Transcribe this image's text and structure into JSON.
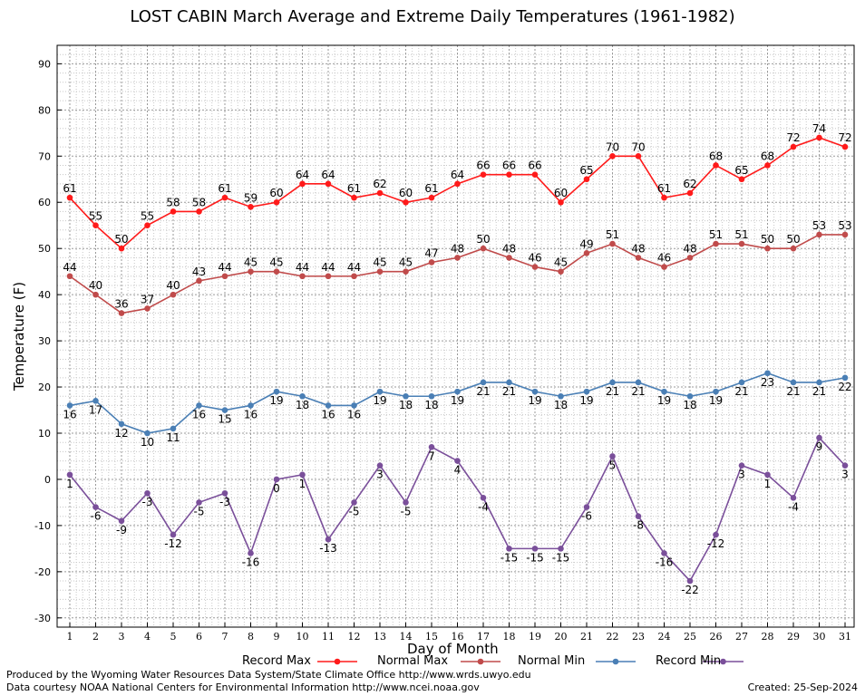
{
  "chart_data": {
    "type": "line",
    "title": "LOST CABIN March Average and Extreme Daily Temperatures (1961-1982)",
    "xlabel": "Day of Month",
    "ylabel": "Temperature (F)",
    "x": [
      1,
      2,
      3,
      4,
      5,
      6,
      7,
      8,
      9,
      10,
      11,
      12,
      13,
      14,
      15,
      16,
      17,
      18,
      19,
      20,
      21,
      22,
      23,
      24,
      25,
      26,
      27,
      28,
      29,
      30,
      31
    ],
    "ylim": [
      -32,
      94
    ],
    "yticks": [
      -30,
      -20,
      -10,
      0,
      10,
      20,
      30,
      40,
      50,
      60,
      70,
      80,
      90
    ],
    "grid": true,
    "legend_position": "bottom",
    "series": [
      {
        "name": "Record Max",
        "color": "#ff1a1a",
        "values": [
          61,
          55,
          50,
          55,
          58,
          58,
          61,
          59,
          60,
          64,
          64,
          61,
          62,
          60,
          61,
          64,
          66,
          66,
          66,
          60,
          65,
          70,
          70,
          61,
          62,
          68,
          65,
          68,
          72,
          74,
          72
        ]
      },
      {
        "name": "Normal Max",
        "color": "#c04b4b",
        "values": [
          44,
          40,
          36,
          37,
          40,
          43,
          44,
          45,
          45,
          44,
          44,
          44,
          45,
          45,
          47,
          48,
          50,
          48,
          46,
          45,
          49,
          51,
          48,
          46,
          48,
          51,
          51,
          50,
          50,
          53,
          53
        ]
      },
      {
        "name": "Normal Min",
        "color": "#4a7fb5",
        "values": [
          16,
          17,
          12,
          10,
          11,
          16,
          15,
          16,
          19,
          18,
          16,
          16,
          19,
          18,
          18,
          19,
          21,
          21,
          19,
          18,
          19,
          21,
          21,
          19,
          18,
          19,
          21,
          23,
          21,
          21,
          22
        ]
      },
      {
        "name": "Record Min",
        "color": "#7a4f9a",
        "values": [
          1,
          -6,
          -9,
          -3,
          -12,
          -5,
          -3,
          -16,
          0,
          1,
          -13,
          -5,
          3,
          -5,
          7,
          4,
          -4,
          -15,
          -15,
          -15,
          -6,
          5,
          -8,
          -16,
          -22,
          -12,
          3,
          1,
          -4,
          9,
          3
        ]
      }
    ]
  },
  "footer": {
    "produced_by": "Produced by the Wyoming Water Resources Data System/State Climate Office http://www.wrds.uwyo.edu",
    "courtesy": "Data courtesy NOAA National Centers for Environmental Information http://www.ncei.noaa.gov",
    "created": "Created:  25-Sep-2024"
  }
}
